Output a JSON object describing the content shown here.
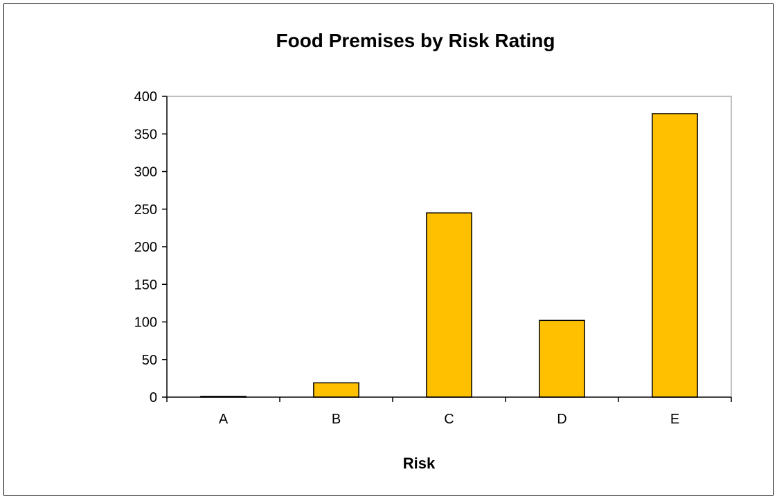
{
  "chart_data": {
    "type": "bar",
    "title": "Food Premises by Risk Rating",
    "xlabel": "Risk",
    "ylabel": "",
    "categories": [
      "A",
      "B",
      "C",
      "D",
      "E"
    ],
    "values": [
      1,
      19,
      245,
      102,
      377
    ],
    "ylim": [
      0,
      400
    ],
    "yticks": [
      "0",
      "50",
      "100",
      "150",
      "200",
      "250",
      "300",
      "350",
      "400"
    ],
    "grid": false,
    "legend": "none",
    "bar_color": "#FFC000",
    "bar_edge_color": "#000000"
  }
}
